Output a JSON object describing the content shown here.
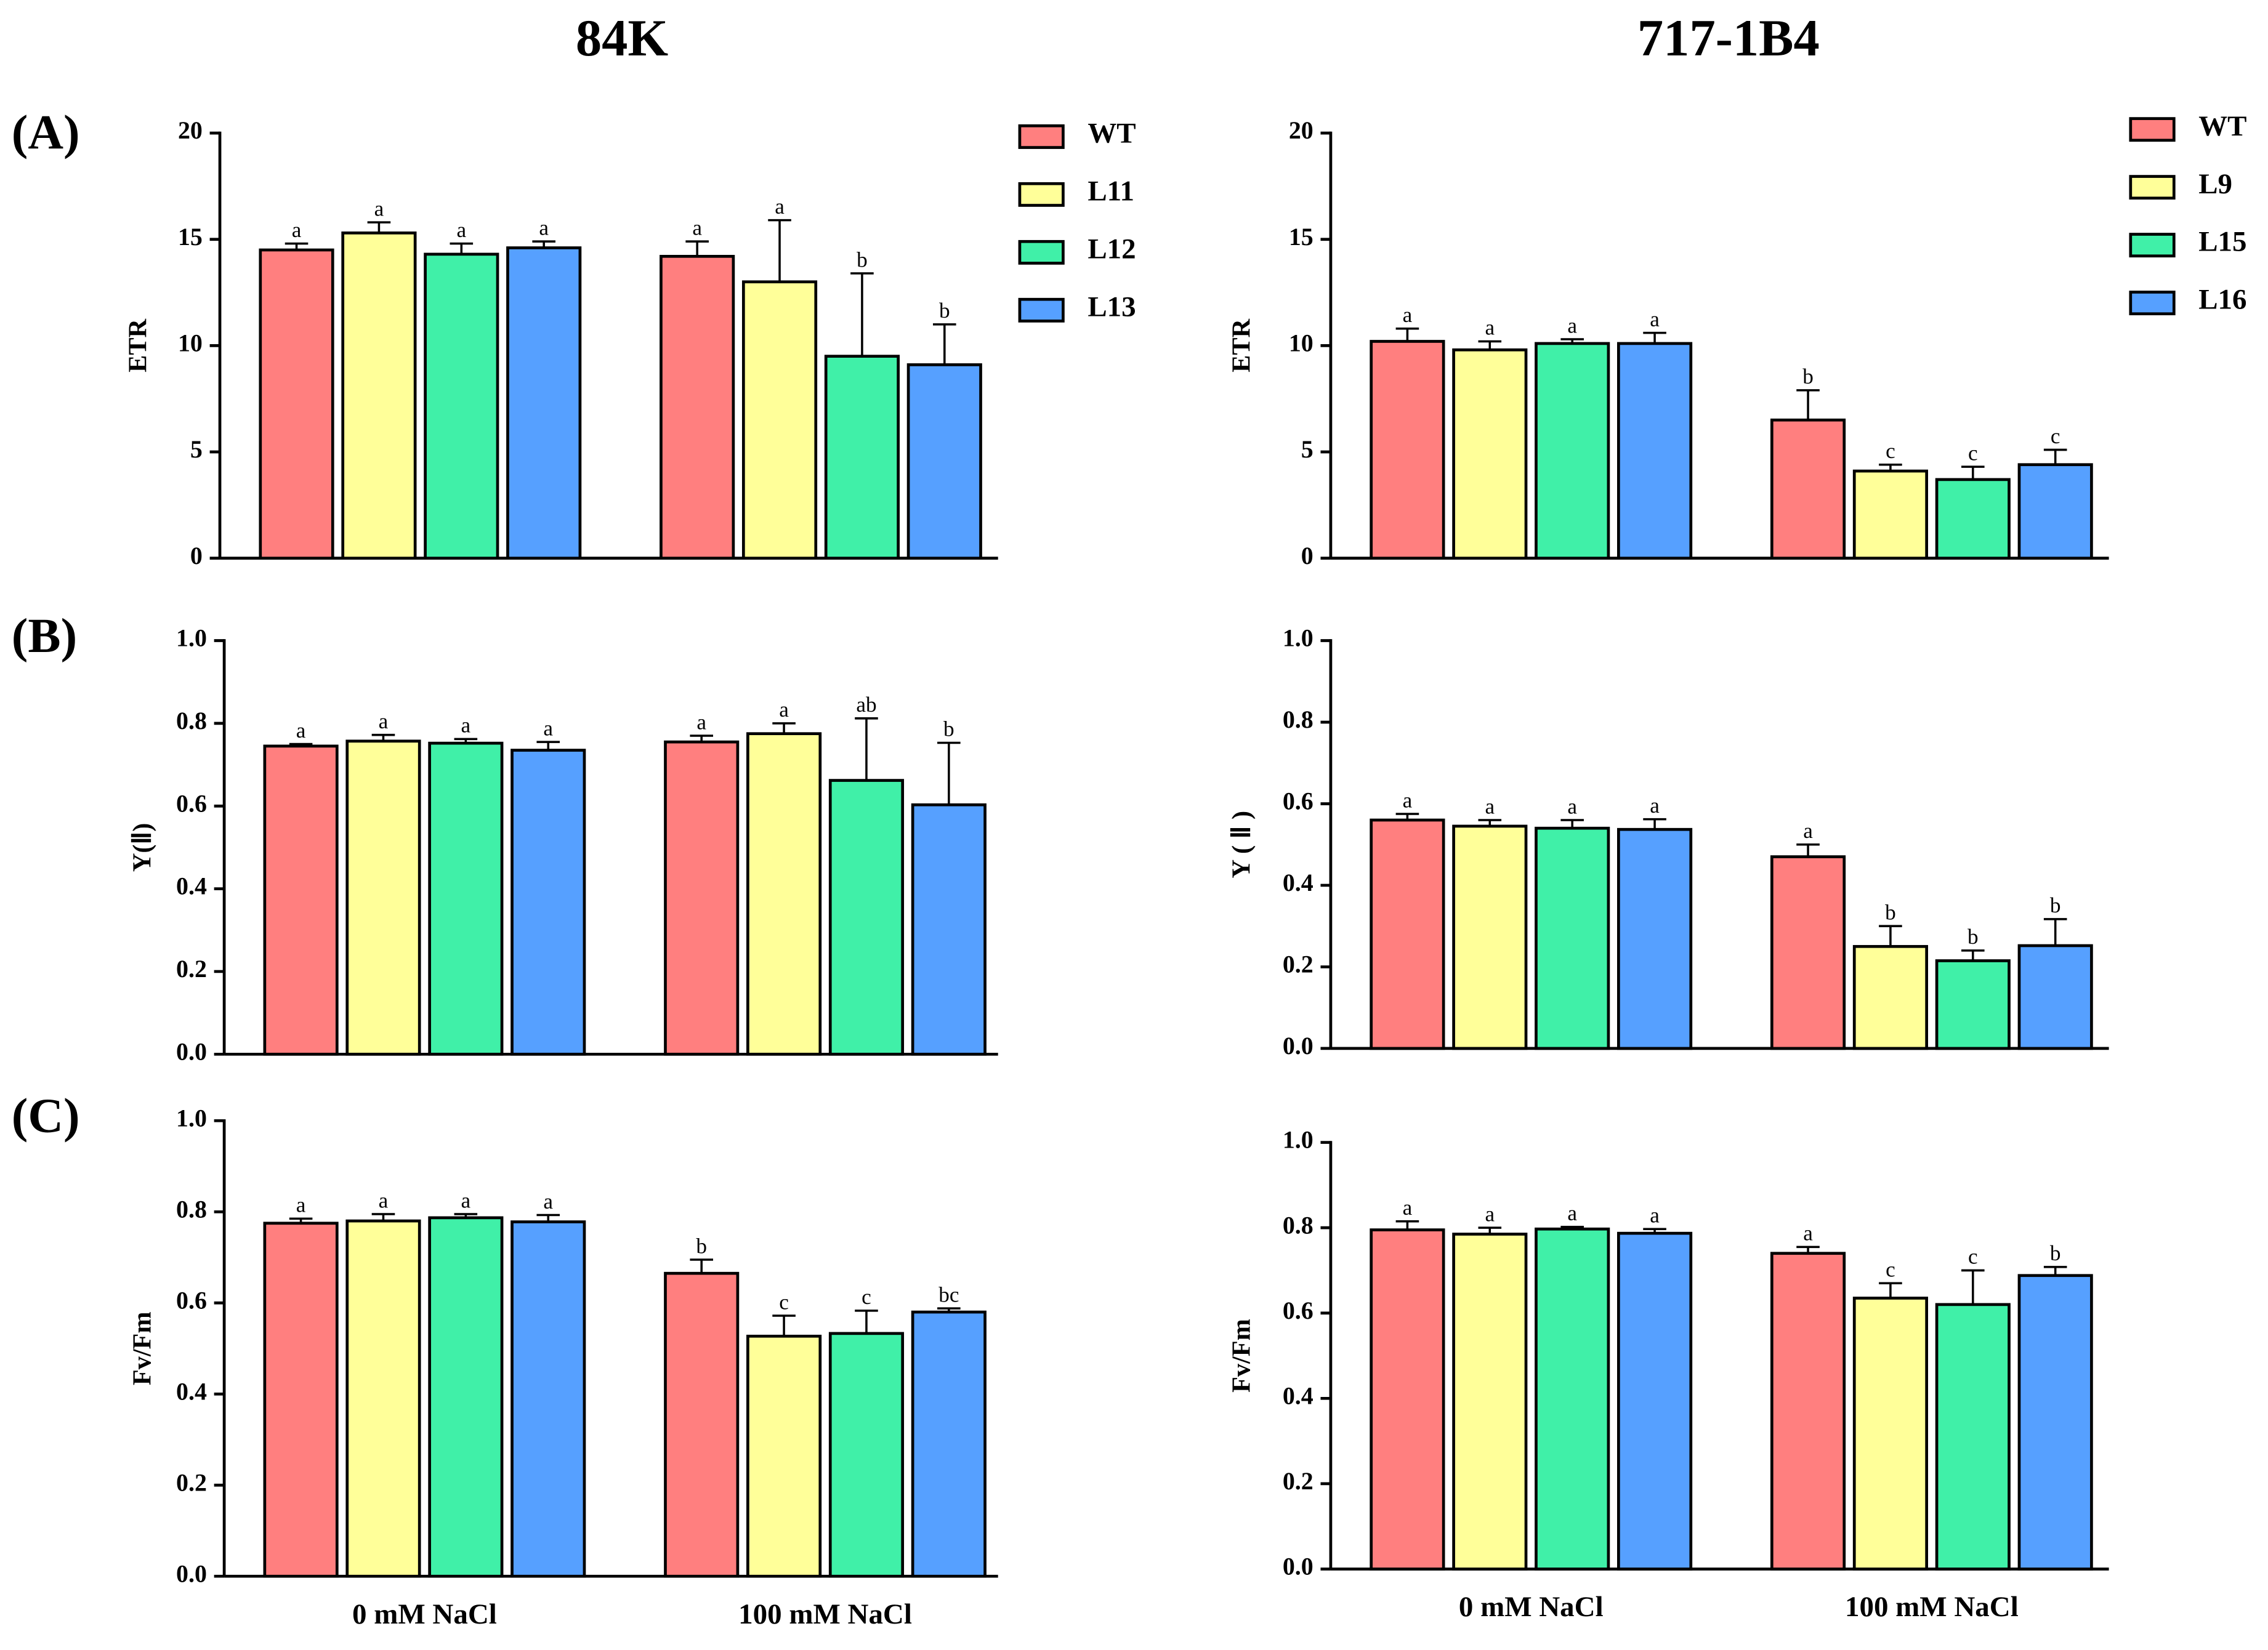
{
  "column_titles": [
    "84K",
    "717-1B4"
  ],
  "panel_labels": [
    "(A)",
    "(B)",
    "(C)"
  ],
  "chart_data": [
    {
      "type": "bar",
      "ylabel": "ETR",
      "categories": [
        null,
        null
      ],
      "ylim": [
        0,
        20
      ],
      "yticks": [
        0,
        5,
        10,
        15,
        20
      ],
      "series": [
        {
          "name": "WT",
          "color": "#ff7f7f",
          "values": [
            14.5,
            14.2
          ],
          "errors": [
            0.3,
            0.7
          ],
          "letters": [
            "a",
            "a"
          ]
        },
        {
          "name": "L11",
          "color": "#ffff99",
          "values": [
            15.3,
            13.0
          ],
          "errors": [
            0.5,
            2.9
          ],
          "letters": [
            "a",
            "a"
          ]
        },
        {
          "name": "L12",
          "color": "#40f0a8",
          "values": [
            14.3,
            9.5
          ],
          "errors": [
            0.5,
            3.9
          ],
          "letters": [
            "a",
            "b"
          ]
        },
        {
          "name": "L13",
          "color": "#56a0ff",
          "values": [
            14.6,
            9.1
          ],
          "errors": [
            0.3,
            1.9
          ],
          "letters": [
            "a",
            "b"
          ]
        }
      ]
    },
    {
      "type": "bar",
      "ylabel": "ETR",
      "categories": [
        null,
        null
      ],
      "ylim": [
        0,
        20
      ],
      "yticks": [
        0,
        5,
        10,
        15,
        20
      ],
      "series": [
        {
          "name": "WT",
          "color": "#ff7f7f",
          "values": [
            10.2,
            6.5
          ],
          "errors": [
            0.6,
            1.4
          ],
          "letters": [
            "a",
            "b"
          ]
        },
        {
          "name": "L9",
          "color": "#ffff99",
          "values": [
            9.8,
            4.1
          ],
          "errors": [
            0.4,
            0.3
          ],
          "letters": [
            "a",
            "c"
          ]
        },
        {
          "name": "L15",
          "color": "#40f0a8",
          "values": [
            10.1,
            3.7
          ],
          "errors": [
            0.2,
            0.6
          ],
          "letters": [
            "a",
            "c"
          ]
        },
        {
          "name": "L16",
          "color": "#56a0ff",
          "values": [
            10.1,
            4.4
          ],
          "errors": [
            0.5,
            0.7
          ],
          "letters": [
            "a",
            "c"
          ]
        }
      ]
    },
    {
      "type": "bar",
      "ylabel": "Y(Ⅱ)",
      "categories": [
        null,
        null
      ],
      "ylim": [
        0,
        1
      ],
      "yticks": [
        {
          "value": 0,
          "label": "0.0"
        },
        0.2,
        0.4,
        0.6,
        0.8,
        {
          "value": 1,
          "label": "1.0"
        }
      ],
      "series": [
        {
          "color": "#ff7f7f",
          "values": [
            0.745,
            0.755
          ],
          "errors": [
            0.005,
            0.015
          ],
          "letters": [
            "a",
            "a"
          ]
        },
        {
          "color": "#ffff99",
          "values": [
            0.757,
            0.775
          ],
          "errors": [
            0.015,
            0.025
          ],
          "letters": [
            "a",
            "a"
          ]
        },
        {
          "color": "#40f0a8",
          "values": [
            0.752,
            0.662
          ],
          "errors": [
            0.01,
            0.15
          ],
          "letters": [
            "a",
            "ab"
          ]
        },
        {
          "color": "#56a0ff",
          "values": [
            0.735,
            0.603
          ],
          "errors": [
            0.02,
            0.15
          ],
          "letters": [
            "a",
            "b"
          ]
        }
      ]
    },
    {
      "type": "bar",
      "ylabel": "Y ( Ⅱ )",
      "categories": [
        null,
        null
      ],
      "ylim": [
        0,
        1
      ],
      "yticks": [
        {
          "value": 0,
          "label": "0.0"
        },
        0.2,
        0.4,
        0.6,
        0.8,
        {
          "value": 1,
          "label": "1.0"
        }
      ],
      "series": [
        {
          "color": "#ff7f7f",
          "values": [
            0.56,
            0.47
          ],
          "errors": [
            0.015,
            0.03
          ],
          "letters": [
            "a",
            "a"
          ]
        },
        {
          "color": "#ffff99",
          "values": [
            0.545,
            0.25
          ],
          "errors": [
            0.015,
            0.05
          ],
          "letters": [
            "a",
            "b"
          ]
        },
        {
          "color": "#40f0a8",
          "values": [
            0.54,
            0.215
          ],
          "errors": [
            0.02,
            0.025
          ],
          "letters": [
            "a",
            "b"
          ]
        },
        {
          "color": "#56a0ff",
          "values": [
            0.537,
            0.252
          ],
          "errors": [
            0.025,
            0.065
          ],
          "letters": [
            "a",
            "b"
          ]
        }
      ]
    },
    {
      "type": "bar",
      "ylabel": "Fv/Fm",
      "categories": [
        "0 mM NaCl",
        "100 mM NaCl"
      ],
      "ylim": [
        0,
        1
      ],
      "yticks": [
        {
          "value": 0,
          "label": "0.0"
        },
        0.2,
        0.4,
        0.6,
        0.8,
        {
          "value": 1,
          "label": "1.0"
        }
      ],
      "series": [
        {
          "color": "#ff7f7f",
          "values": [
            0.775,
            0.665
          ],
          "errors": [
            0.01,
            0.03
          ],
          "letters": [
            "a",
            "b"
          ]
        },
        {
          "color": "#ffff99",
          "values": [
            0.78,
            0.527
          ],
          "errors": [
            0.015,
            0.045
          ],
          "letters": [
            "a",
            "c"
          ]
        },
        {
          "color": "#40f0a8",
          "values": [
            0.787,
            0.533
          ],
          "errors": [
            0.008,
            0.05
          ],
          "letters": [
            "a",
            "c"
          ]
        },
        {
          "color": "#56a0ff",
          "values": [
            0.778,
            0.58
          ],
          "errors": [
            0.015,
            0.008
          ],
          "letters": [
            "a",
            "bc"
          ]
        }
      ]
    },
    {
      "type": "bar",
      "ylabel": "Fv/Fm",
      "categories": [
        "0 mM NaCl",
        "100 mM NaCl"
      ],
      "ylim": [
        0,
        1
      ],
      "yticks": [
        {
          "value": 0,
          "label": "0.0"
        },
        0.2,
        0.4,
        0.6,
        0.8,
        {
          "value": 1,
          "label": "1.0"
        }
      ],
      "series": [
        {
          "color": "#ff7f7f",
          "values": [
            0.795,
            0.74
          ],
          "errors": [
            0.02,
            0.015
          ],
          "letters": [
            "a",
            "a"
          ]
        },
        {
          "color": "#ffff99",
          "values": [
            0.785,
            0.635
          ],
          "errors": [
            0.015,
            0.035
          ],
          "letters": [
            "a",
            "c"
          ]
        },
        {
          "color": "#40f0a8",
          "values": [
            0.797,
            0.62
          ],
          "errors": [
            0.005,
            0.08
          ],
          "letters": [
            "a",
            "c"
          ]
        },
        {
          "color": "#56a0ff",
          "values": [
            0.787,
            0.688
          ],
          "errors": [
            0.01,
            0.02
          ],
          "letters": [
            "a",
            "b"
          ]
        }
      ]
    }
  ]
}
